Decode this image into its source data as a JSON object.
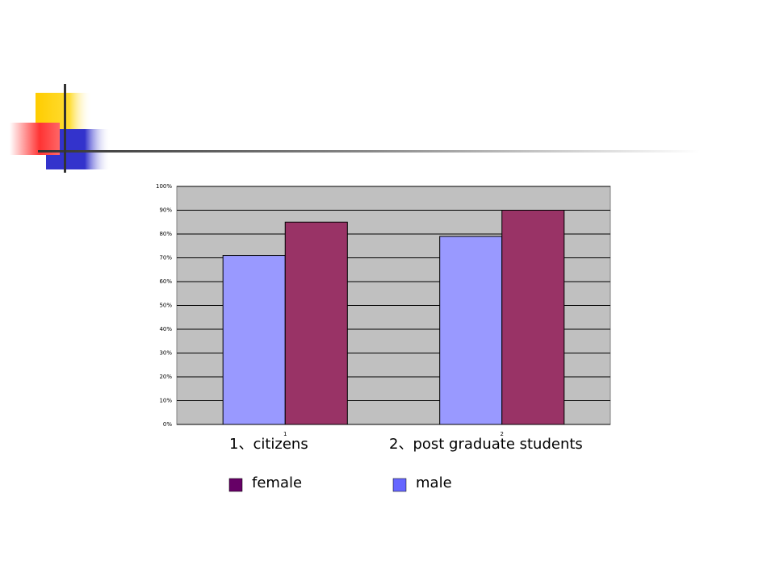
{
  "chart_data": {
    "type": "bar",
    "categories": [
      "1",
      "2"
    ],
    "category_titles": [
      "1、citizens",
      "2、post graduate students"
    ],
    "series": [
      {
        "name": "male",
        "color": "#9999ff",
        "legend_color": "#6666ff",
        "values": [
          71,
          79
        ]
      },
      {
        "name": "female",
        "color": "#993366",
        "legend_color": "#660066",
        "values": [
          85,
          90
        ]
      }
    ],
    "ylim": [
      0,
      100
    ],
    "yticks": [
      {
        "value": 0,
        "label": "0%"
      },
      {
        "value": 10,
        "label": "10%"
      },
      {
        "value": 20,
        "label": "20%"
      },
      {
        "value": 30,
        "label": "30%"
      },
      {
        "value": 40,
        "label": "40%"
      },
      {
        "value": 50,
        "label": "50%"
      },
      {
        "value": 60,
        "label": "60%"
      },
      {
        "value": 70,
        "label": "70%"
      },
      {
        "value": 80,
        "label": "80%"
      },
      {
        "value": 90,
        "label": "90%"
      },
      {
        "value": 100,
        "label": "100%"
      }
    ],
    "grid": true,
    "plot_background": "#c0c0c0"
  }
}
